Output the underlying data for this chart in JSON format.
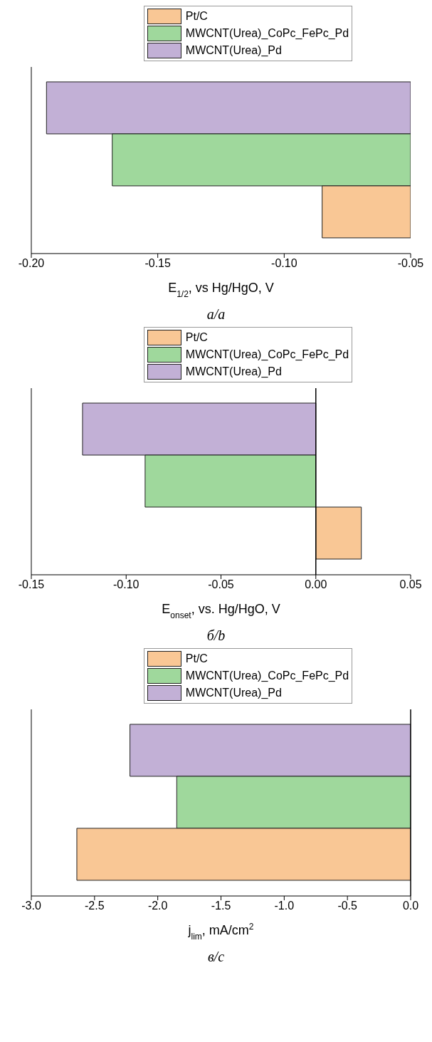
{
  "chart_data": [
    {
      "type": "bar",
      "orientation": "horizontal",
      "categories": [
        null
      ],
      "xlabel": "E$_{1/2}$, vs Hg/HgO, V",
      "xlim": [
        -0.2,
        -0.05
      ],
      "xticks": [
        {
          "value": -0.2,
          "label": "-0.20"
        },
        {
          "value": -0.15,
          "label": "-0.15"
        },
        {
          "value": -0.1,
          "label": "-0.10"
        },
        {
          "value": -0.05,
          "label": "-0.05"
        }
      ],
      "tick_labels": "x",
      "legend": "top",
      "grid": false,
      "annotations": [
        "а/a"
      ],
      "series": [
        {
          "name": "Pt/C",
          "color": "#f9c795",
          "values": [
            -0.085
          ]
        },
        {
          "name": "MWCNT(Urea)_CoPc_FePc_Pd",
          "color": "#9fd89c",
          "values": [
            -0.168
          ]
        },
        {
          "name": "MWCNT(Urea)_Pd",
          "color": "#c2b0d6",
          "values": [
            -0.194
          ]
        }
      ]
    },
    {
      "type": "bar",
      "orientation": "horizontal",
      "categories": [
        null
      ],
      "xlabel": "E$_{onset}$, vs. Hg/HgO, V",
      "xlim": [
        -0.15,
        0.05
      ],
      "xticks": [
        -0.15,
        {
          "value": -0.1,
          "label": "-0.10"
        },
        -0.05,
        {
          "value": 0,
          "label": "0.00"
        },
        0.05
      ],
      "tick_labels": "x",
      "legend": "top",
      "grid": false,
      "ref_lines": [
        {
          "axis": "x",
          "value": 0
        }
      ],
      "annotations": [
        "б/b"
      ],
      "series": [
        {
          "name": "Pt/C",
          "color": "#f9c795",
          "values": [
            0.024
          ]
        },
        {
          "name": "MWCNT(Urea)_CoPc_FePc_Pd",
          "color": "#9fd89c",
          "values": [
            -0.09
          ]
        },
        {
          "name": "MWCNT(Urea)_Pd",
          "color": "#c2b0d6",
          "values": [
            -0.123
          ]
        }
      ]
    },
    {
      "type": "bar",
      "orientation": "horizontal",
      "categories": [
        null
      ],
      "xlabel": "j$_{lim}$, mA/cm$^{2}$",
      "xlim": [
        -3,
        0
      ],
      "xticks": [
        {
          "value": -3,
          "label": "-3.0"
        },
        -2.5,
        {
          "value": -2,
          "label": "-2.0"
        },
        -1.5,
        {
          "value": -1,
          "label": "-1.0"
        },
        -0.5,
        {
          "value": 0,
          "label": "0.0"
        }
      ],
      "tick_labels": "x",
      "legend": "top",
      "grid": false,
      "ref_lines": [
        {
          "axis": "x",
          "value": 0
        }
      ],
      "annotations": [
        "в/c"
      ],
      "series": [
        {
          "name": "Pt/C",
          "color": "#f9c795",
          "values": [
            -2.64
          ]
        },
        {
          "name": "MWCNT(Urea)_CoPc_FePc_Pd",
          "color": "#9fd89c",
          "values": [
            -1.85
          ]
        },
        {
          "name": "MWCNT(Urea)_Pd",
          "color": "#c2b0d6",
          "values": [
            -2.22
          ]
        }
      ]
    }
  ]
}
